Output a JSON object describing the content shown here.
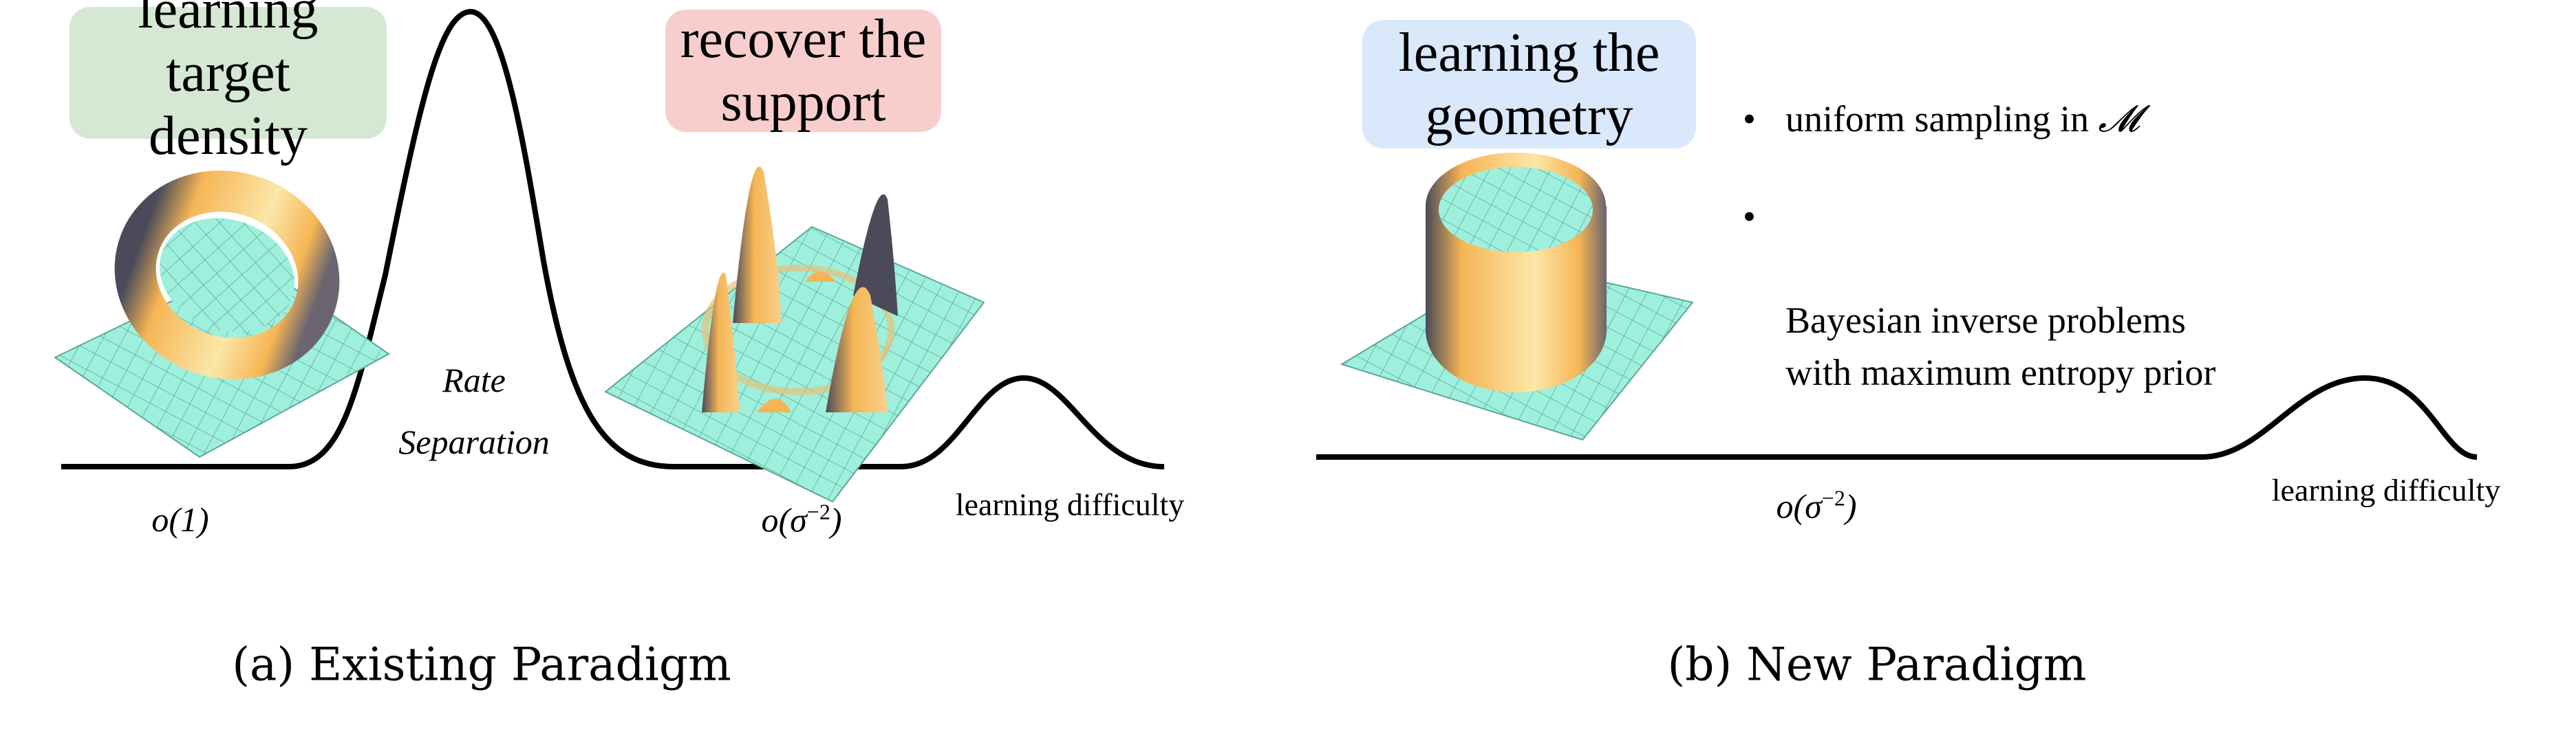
{
  "panel_a": {
    "box_density": {
      "text": "learning target\ndensity",
      "color": "#d5e8d4"
    },
    "box_support": {
      "text": "recover the\nsupport",
      "color": "#f8cecc"
    },
    "rate_label_1": "Rate",
    "rate_label_2": "Separation",
    "rate_low": "o(1)",
    "rate_high_base": "o(σ",
    "rate_high_exp": "−2",
    "rate_high_close": ")",
    "difficulty_label": "learning difficulty",
    "caption": "(a) Existing Paradigm"
  },
  "panel_b": {
    "box_geometry": {
      "text": "learning the\ngeometry",
      "color": "#dae8fc"
    },
    "bullets": [
      {
        "text": "uniform sampling in ",
        "math": "𝓜"
      },
      {
        "text": "Bayesian inverse problems\nwith maximum entropy prior"
      }
    ],
    "bullet_symbol": "•",
    "rate_base": "o(σ",
    "rate_exp": "−2",
    "rate_close": ")",
    "difficulty_label": "learning difficulty",
    "caption": "(b) New Paradigm"
  },
  "colors": {
    "surface_base": "#9ef0dc",
    "surface_peak": "#f5b555",
    "surface_shadow": "#4a4a5a",
    "curve": "#000000"
  }
}
